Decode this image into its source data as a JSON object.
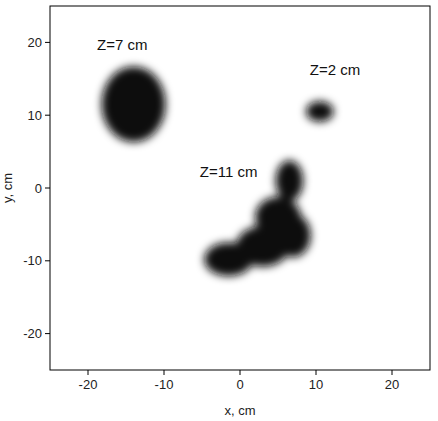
{
  "chart_data": {
    "type": "image",
    "x_label": "x, cm",
    "y_label": "y, cm",
    "xlim": [
      -25,
      25
    ],
    "ylim": [
      -25,
      25
    ],
    "xticks": [
      -20,
      -10,
      0,
      10,
      20
    ],
    "yticks": [
      -20,
      -10,
      0,
      10,
      20
    ],
    "grid": false,
    "color": "#111111",
    "blobs": [
      {
        "x": -14,
        "y": 11.5,
        "rx": 4.2,
        "ry": 5.2
      },
      {
        "x": 10.5,
        "y": 10.5,
        "rx": 1.8,
        "ry": 1.4
      },
      {
        "x": 6.5,
        "y": 1,
        "rx": 1.8,
        "ry": 2.8
      },
      {
        "x": 5,
        "y": -4,
        "rx": 3,
        "ry": 2.8
      },
      {
        "x": 7,
        "y": -6.5,
        "rx": 2.3,
        "ry": 3
      },
      {
        "x": 3,
        "y": -8,
        "rx": 3.5,
        "ry": 2.8
      },
      {
        "x": -1.5,
        "y": -9.8,
        "rx": 3.2,
        "ry": 2.3
      }
    ],
    "annotations": [
      {
        "text": "Z=7 cm",
        "x": -15.5,
        "y": 19
      },
      {
        "text": "Z=2 cm",
        "x": 12.5,
        "y": 15.5
      },
      {
        "text": "Z=11 cm",
        "x": -1.5,
        "y": 1.5
      }
    ]
  }
}
